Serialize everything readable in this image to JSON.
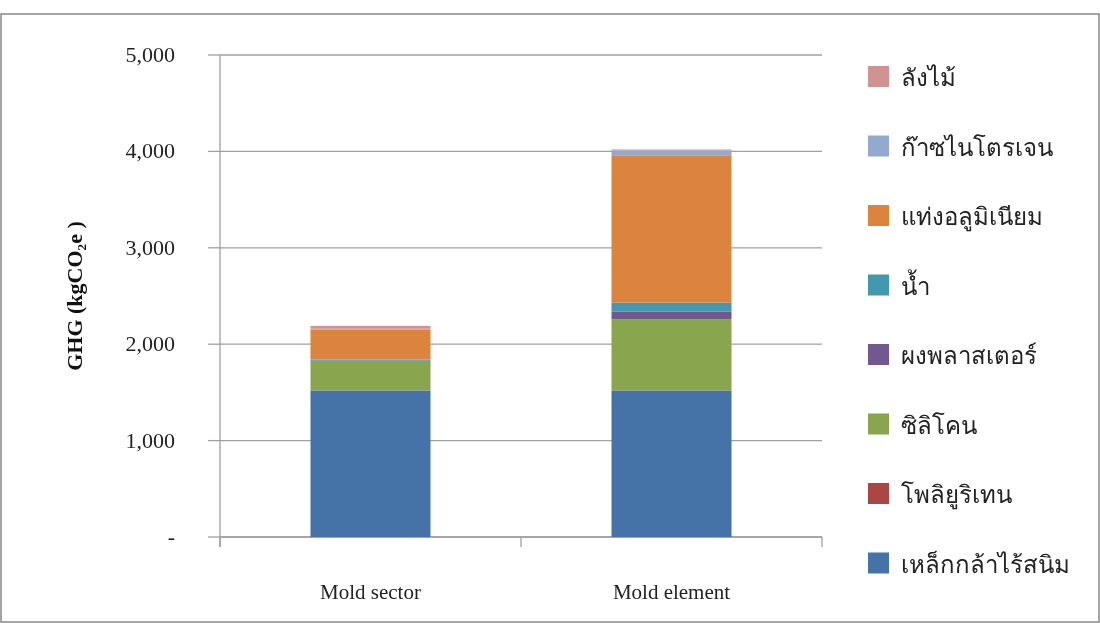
{
  "chart_data": {
    "type": "bar",
    "stacked": true,
    "ylabel": "GHG (kgCO₂e )",
    "categories": [
      "Mold sector",
      "Mold element"
    ],
    "ylim": [
      0,
      5000
    ],
    "yticks": [
      {
        "value": 0,
        "label": "-"
      },
      {
        "value": 1000,
        "label": "1,000"
      },
      {
        "value": 2000,
        "label": "2,000"
      },
      {
        "value": 3000,
        "label": "3,000"
      },
      {
        "value": 4000,
        "label": "4,000"
      },
      {
        "value": 5000,
        "label": "5,000"
      }
    ],
    "grid": "y",
    "legend": "right",
    "series": [
      {
        "name": "เหล็กกล้าไร้สนิม",
        "color": "#4572a7",
        "values": [
          1520,
          1520
        ]
      },
      {
        "name": "โพลิยูริเทน",
        "color": "#aa4643",
        "values": [
          0,
          0
        ]
      },
      {
        "name": "ซิลิโคน",
        "color": "#89a54e",
        "values": [
          300,
          740
        ]
      },
      {
        "name": "ผงพลาสเตอร์",
        "color": "#71588f",
        "values": [
          10,
          80
        ]
      },
      {
        "name": "น้ำ",
        "color": "#4198af",
        "values": [
          10,
          90
        ]
      },
      {
        "name": "แท่งอลูมิเนียม",
        "color": "#db843d",
        "values": [
          310,
          1530
        ]
      },
      {
        "name": "ก๊าซไนโตรเจน",
        "color": "#93a9cf",
        "values": [
          10,
          50
        ]
      },
      {
        "name": "ลังไม้",
        "color": "#d19392",
        "values": [
          30,
          10
        ]
      }
    ]
  }
}
